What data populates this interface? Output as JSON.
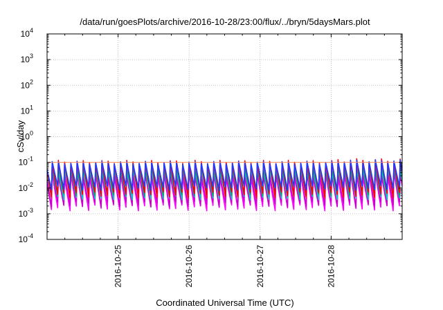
{
  "chart_data": {
    "type": "line",
    "title": "/data/run/goesPlots/archive/2016-10-28/23:00/flux/../bryn/5daysMars.plot",
    "xlabel": "Coordinated Universal Time (UTC)",
    "ylabel": "cSv/day",
    "y_scale": "log",
    "ylim": [
      0.0001,
      10000
    ],
    "xlim": [
      "2016-10-24T00:00",
      "2016-10-29T00:00"
    ],
    "x_ticks": [
      "2016-10-25",
      "2016-10-26",
      "2016-10-27",
      "2016-10-28"
    ],
    "y_ticks": [
      {
        "value": 0.0001,
        "base": "10",
        "exp": "-4"
      },
      {
        "value": 0.001,
        "base": "10",
        "exp": "-3"
      },
      {
        "value": 0.01,
        "base": "10",
        "exp": "-2"
      },
      {
        "value": 0.1,
        "base": "10",
        "exp": "-1"
      },
      {
        "value": 1,
        "base": "10",
        "exp": "0"
      },
      {
        "value": 10,
        "base": "10",
        "exp": "1"
      },
      {
        "value": 100,
        "base": "10",
        "exp": "2"
      },
      {
        "value": 1000,
        "base": "10",
        "exp": "3"
      },
      {
        "value": 10000,
        "base": "10",
        "exp": "4"
      }
    ],
    "grid": true,
    "reference_line": {
      "value": 0.1,
      "color": "#ff8c5a"
    },
    "cycle_hours": 2.1,
    "pattern": "sawtooth: each cycle rises sharply to a peak then decays to a trough",
    "series": [
      {
        "color": "#ff00ff",
        "peak": [
          0.022,
          0.035
        ],
        "trough": [
          0.0013,
          0.0022
        ]
      },
      {
        "color": "#cc00cc",
        "peak": [
          0.03,
          0.045
        ],
        "trough": [
          0.0018,
          0.003
        ]
      },
      {
        "color": "#00c8c8",
        "peak": [
          0.045,
          0.06
        ],
        "trough": [
          0.0035,
          0.005
        ]
      },
      {
        "color": "#00aa66",
        "peak": [
          0.05,
          0.07
        ],
        "trough": [
          0.005,
          0.007
        ]
      },
      {
        "color": "#8a2be2",
        "peak": [
          0.07,
          0.09
        ],
        "trough": [
          0.006,
          0.009
        ]
      },
      {
        "color": "#ff0000",
        "peak": [
          0.09,
          0.12
        ],
        "trough": [
          0.004,
          0.007
        ]
      },
      {
        "color": "#1e3cff",
        "peak": [
          0.085,
          0.11
        ],
        "trough": [
          0.008,
          0.012
        ]
      }
    ]
  },
  "colors": {
    "axis": "#000000",
    "grid": "#b0b0b0",
    "background": "#ffffff"
  }
}
